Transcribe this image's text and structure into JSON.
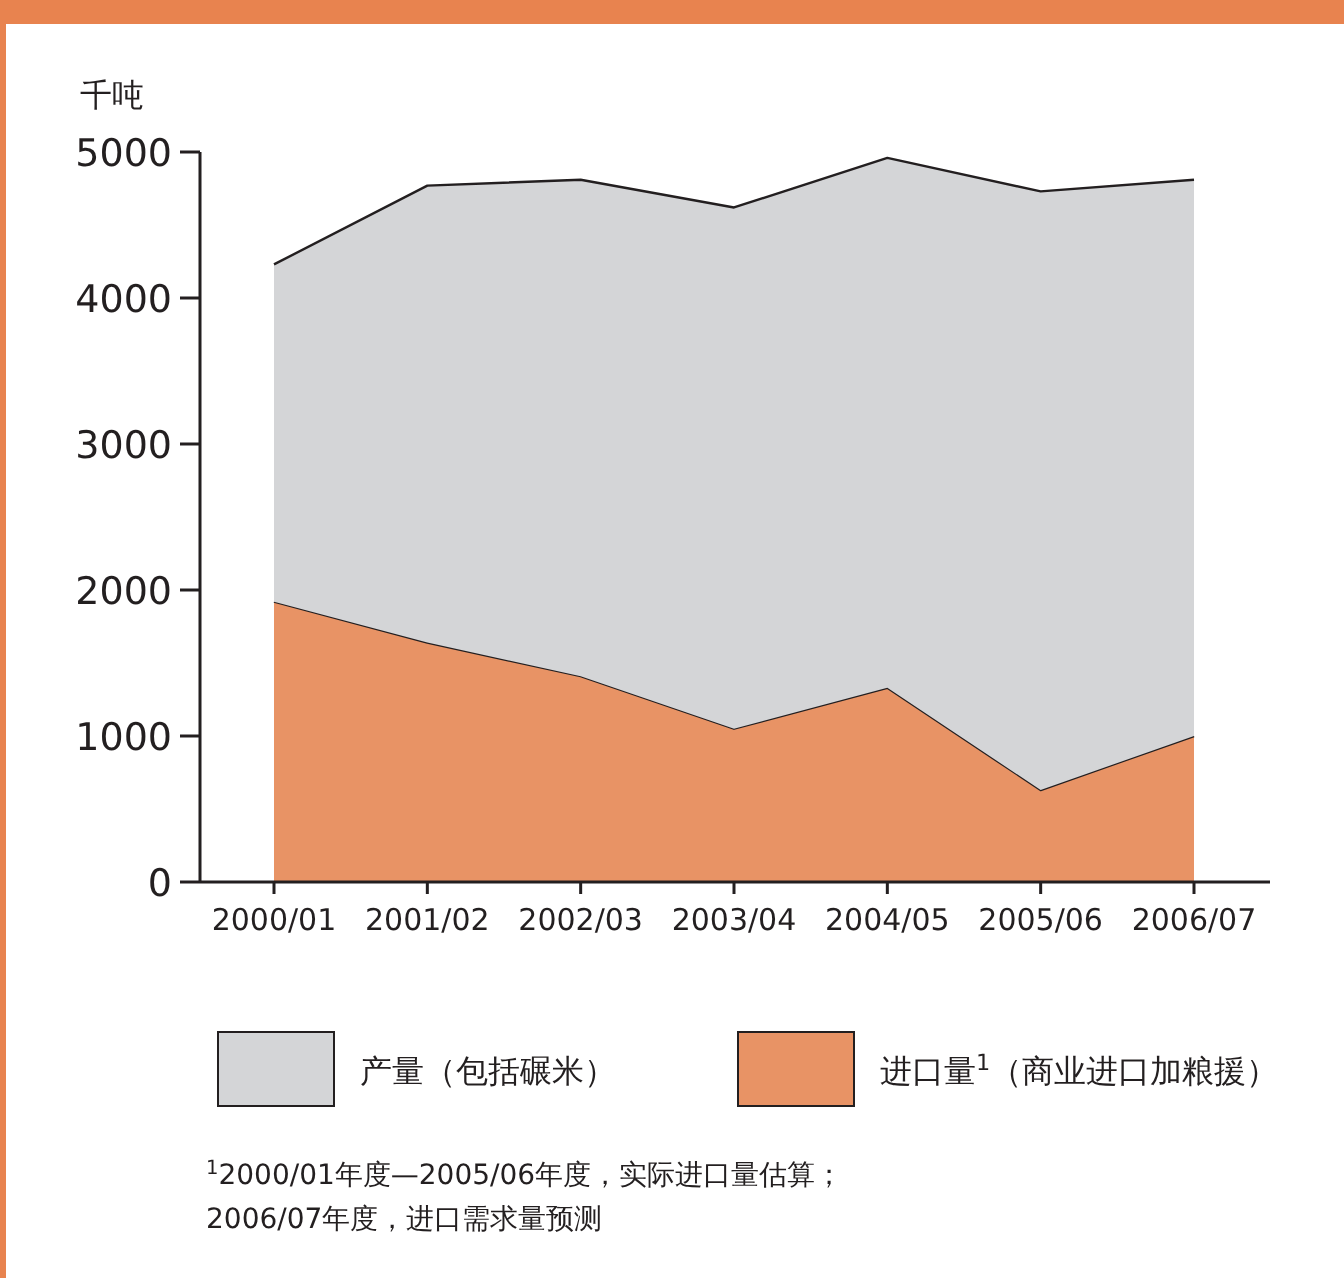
{
  "chart_data": {
    "type": "area",
    "stacked": true,
    "ylabel": "千吨",
    "categories": [
      "2000/01",
      "2001/02",
      "2002/03",
      "2003/04",
      "2004/05",
      "2005/06",
      "2006/07"
    ],
    "series": [
      {
        "name": "进口量$^{1}$（商业进口加粮援）",
        "color": "#e89365",
        "values": [
          1920,
          1640,
          1410,
          1050,
          1330,
          630,
          1000
        ]
      },
      {
        "name": "产量（包括碾米）",
        "color": "#d4d5d7",
        "values": [
          2310,
          3130,
          3400,
          3570,
          3630,
          4100,
          3810
        ]
      }
    ],
    "ylim": [
      0,
      5000
    ],
    "yticks": [
      0,
      1000,
      2000,
      3000,
      4000,
      5000
    ],
    "grid": false,
    "legend": "bottom",
    "annotations": [
      "$^{1}$2000/01年度—2005/06年度，实际进口量估算；",
      "2006/07年度，进口需求量预测"
    ]
  }
}
